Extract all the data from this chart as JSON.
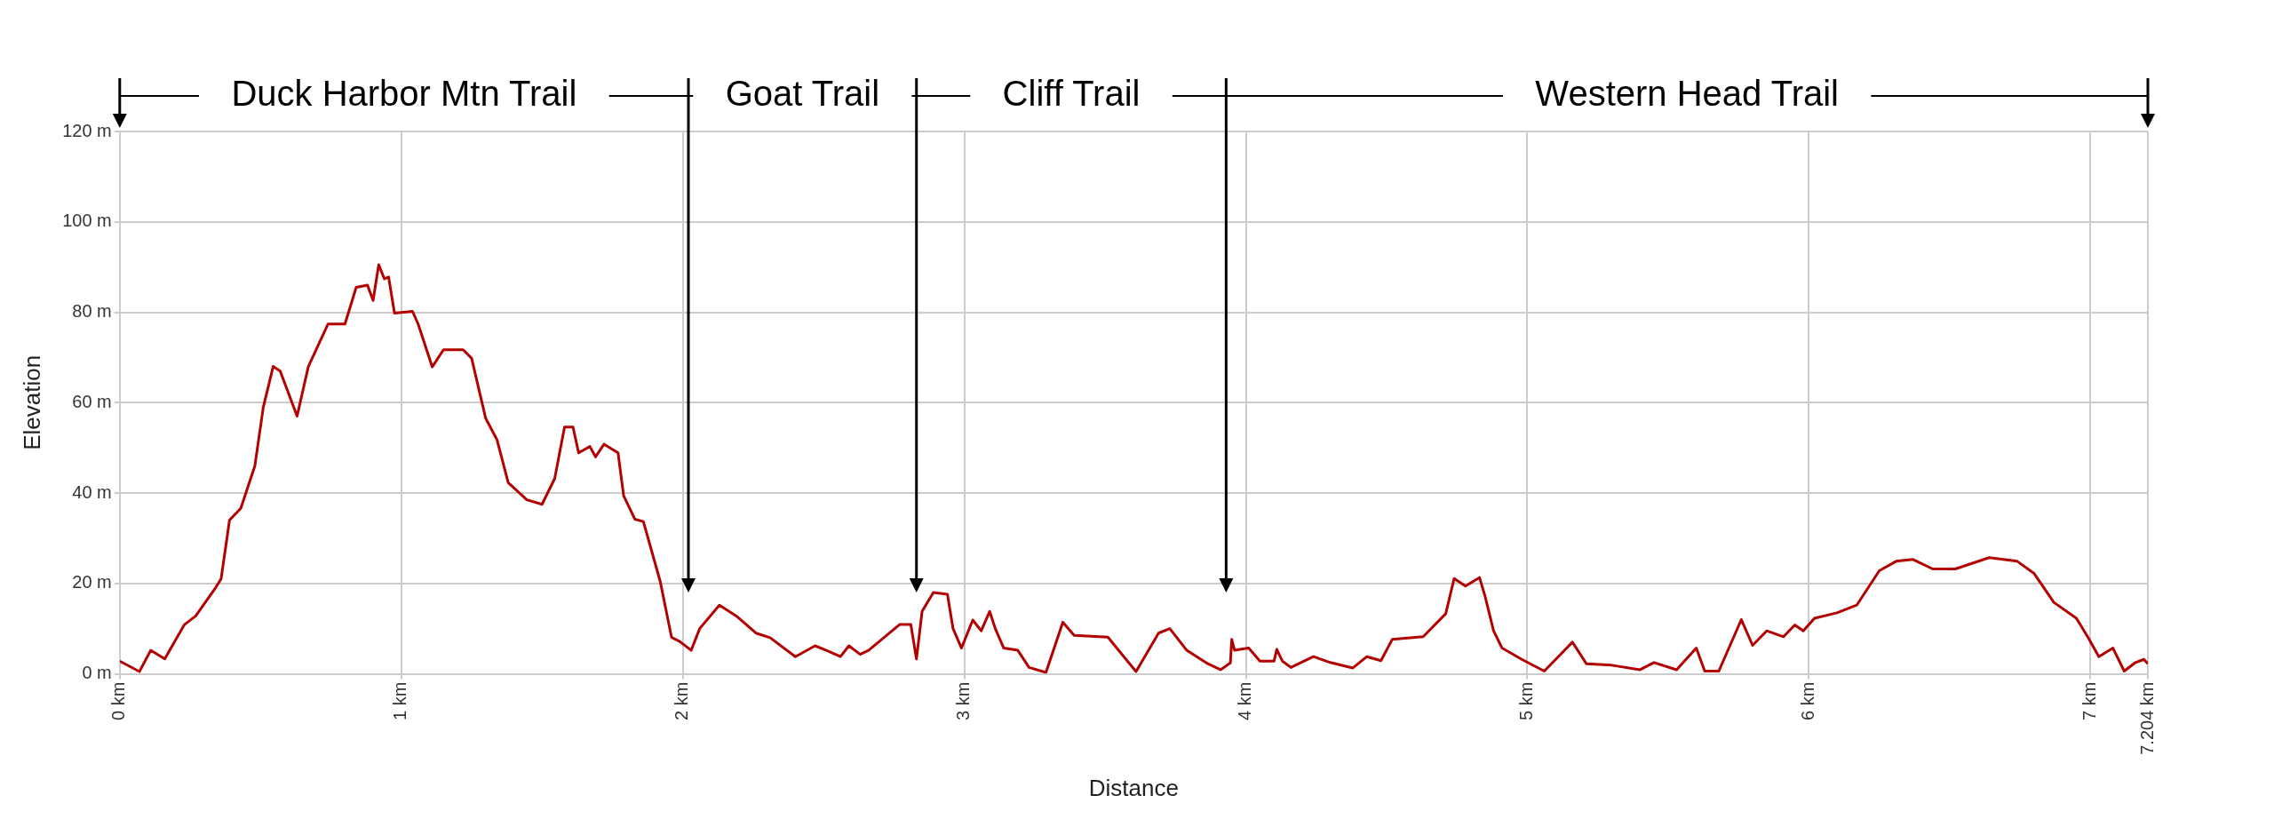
{
  "chart_data": {
    "type": "line",
    "xlabel": "Distance",
    "ylabel": "Elevation",
    "xlim": [
      0,
      7.204
    ],
    "ylim": [
      0,
      120
    ],
    "xticks": [
      {
        "value": 0,
        "label": "0 km"
      },
      {
        "value": 1,
        "label": "1 km"
      },
      {
        "value": 2,
        "label": "2 km"
      },
      {
        "value": 3,
        "label": "3 km"
      },
      {
        "value": 4,
        "label": "4 km"
      },
      {
        "value": 5,
        "label": "5 km"
      },
      {
        "value": 6,
        "label": "6 km"
      },
      {
        "value": 7,
        "label": "7 km"
      },
      {
        "value": 7.204,
        "label": "7.204 km"
      }
    ],
    "yticks": [
      {
        "value": 0,
        "label": "0 m"
      },
      {
        "value": 20,
        "label": "20 m"
      },
      {
        "value": 40,
        "label": "40 m"
      },
      {
        "value": 60,
        "label": "60 m"
      },
      {
        "value": 80,
        "label": "80 m"
      },
      {
        "value": 100,
        "label": "100 m"
      },
      {
        "value": 120,
        "label": "120 m"
      }
    ],
    "grid": true,
    "legend": false,
    "annotations": [
      "Duck Harbor Mtn Trail",
      "Goat Trail",
      "Cliff Trail",
      "Western Head Trail"
    ],
    "ref_lines": [
      {
        "axis": "x",
        "value": 2.02,
        "color": "#000000"
      },
      {
        "axis": "x",
        "value": 2.83,
        "color": "#000000"
      },
      {
        "axis": "x",
        "value": 3.93,
        "color": "#000000"
      }
    ],
    "series": [
      {
        "color": "#b30000",
        "x": [
          0,
          0.07,
          0.11,
          0.16,
          0.23,
          0.27,
          0.34,
          0.36,
          0.39,
          0.43,
          0.48,
          0.51,
          0.545,
          0.57,
          0.63,
          0.67,
          0.7,
          0.74,
          0.8,
          0.84,
          0.88,
          0.9,
          0.92,
          0.94,
          0.955,
          0.976,
          1.04,
          1.06,
          1.11,
          1.15,
          1.22,
          1.25,
          1.3,
          1.34,
          1.38,
          1.446,
          1.5,
          1.545,
          1.58,
          1.61,
          1.63,
          1.67,
          1.69,
          1.72,
          1.77,
          1.79,
          1.83,
          1.86,
          1.92,
          1.96,
          1.99,
          2.03,
          2.06,
          2.13,
          2.19,
          2.26,
          2.31,
          2.4,
          2.47,
          2.51,
          2.56,
          2.59,
          2.63,
          2.66,
          2.77,
          2.81,
          2.83,
          2.85,
          2.89,
          2.94,
          2.96,
          2.99,
          3.03,
          3.06,
          3.09,
          3.11,
          3.14,
          3.19,
          3.23,
          3.29,
          3.35,
          3.39,
          3.51,
          3.61,
          3.69,
          3.73,
          3.79,
          3.86,
          3.91,
          3.945,
          3.95,
          3.96,
          4.01,
          4.05,
          4.1,
          4.11,
          4.13,
          4.16,
          4.24,
          4.3,
          4.38,
          4.43,
          4.48,
          4.52,
          4.63,
          4.71,
          4.74,
          4.78,
          4.83,
          4.85,
          4.88,
          4.91,
          4.98,
          5.06,
          5.11,
          5.16,
          5.21,
          5.3,
          5.4,
          5.45,
          5.53,
          5.6,
          5.63,
          5.68,
          5.76,
          5.8,
          5.85,
          5.91,
          5.95,
          5.98,
          6.02,
          6.1,
          6.17,
          6.25,
          6.31,
          6.37,
          6.44,
          6.52,
          6.64,
          6.74,
          6.8,
          6.87,
          6.95,
          6.99,
          7.03,
          7.08,
          7.12,
          7.16,
          7.19,
          7.204
        ],
        "values": [
          2.8,
          0.5,
          5.2,
          3.3,
          10.9,
          12.8,
          19,
          21,
          34,
          36.6,
          46,
          59,
          68,
          67,
          57,
          68,
          72,
          77.4,
          77.4,
          85.5,
          86,
          82.6,
          90.5,
          87.4,
          87.8,
          79.8,
          80.2,
          77.4,
          67.9,
          71.7,
          71.7,
          69.8,
          56.5,
          51.8,
          42.3,
          38.5,
          37.5,
          43.2,
          54.6,
          54.6,
          48.9,
          50.3,
          48,
          50.8,
          48.9,
          39.4,
          34.2,
          33.7,
          20.4,
          8.1,
          7.1,
          5.2,
          10,
          15.2,
          12.8,
          9,
          8,
          3.8,
          6.2,
          5.2,
          3.8,
          6.2,
          4.3,
          5.2,
          10.9,
          10.9,
          3.3,
          13.8,
          18,
          17.6,
          10,
          5.7,
          11.9,
          9.5,
          13.8,
          10,
          5.7,
          5.2,
          1.4,
          0.3,
          11.4,
          8.5,
          8.1,
          0.5,
          9,
          10,
          5.2,
          2.4,
          0.9,
          2.4,
          7.6,
          5.2,
          5.7,
          2.8,
          2.8,
          5.4,
          2.8,
          1.4,
          3.8,
          2.5,
          1.3,
          3.8,
          2.9,
          7.6,
          8.2,
          13.3,
          21.1,
          19.4,
          21.3,
          17.1,
          9.5,
          5.7,
          3.2,
          0.6,
          3.8,
          7,
          2.2,
          1.9,
          0.9,
          2.5,
          0.9,
          5.7,
          0.6,
          0.6,
          12,
          6.3,
          9.5,
          8.2,
          10.8,
          9.5,
          12.3,
          13.5,
          15.2,
          22.8,
          24.9,
          25.3,
          23.2,
          23.2,
          25.7,
          24.9,
          22.2,
          15.8,
          12.3,
          8.2,
          3.8,
          5.7,
          0.6,
          2.5,
          3.2,
          2.2
        ]
      }
    ]
  }
}
